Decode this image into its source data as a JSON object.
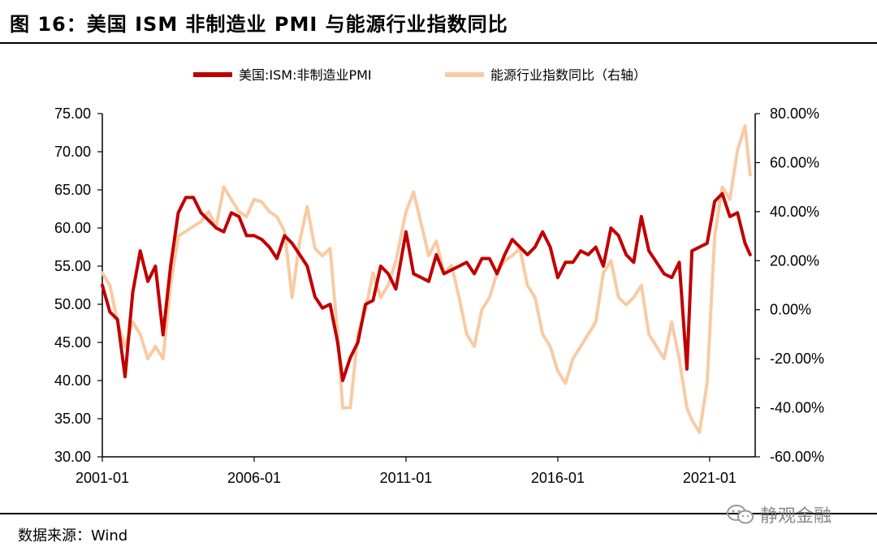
{
  "title": "图 16：美国 ISM 非制造业 PMI 与能源行业指数同比",
  "source": "数据来源：Wind",
  "watermark": "静观金融",
  "chart_data": {
    "type": "line",
    "x_ticks": [
      "2001-01",
      "2006-01",
      "2011-01",
      "2016-01",
      "2021-01"
    ],
    "y_left": {
      "lim": [
        30,
        75
      ],
      "ticks": [
        "75.00",
        "70.00",
        "65.00",
        "60.00",
        "55.00",
        "50.00",
        "45.00",
        "40.00",
        "35.00",
        "30.00"
      ]
    },
    "y_right": {
      "lim": [
        -60,
        80
      ],
      "ticks": [
        "80.00%",
        "60.00%",
        "40.00%",
        "20.00%",
        "0.00%",
        "-20.00%",
        "-40.00%",
        "-60.00%"
      ]
    },
    "series": [
      {
        "name": "美国:ISM:非制造业PMI",
        "axis": "left",
        "color": "#c00000",
        "x": [
          "2001-01",
          "2001-04",
          "2001-07",
          "2001-10",
          "2002-01",
          "2002-04",
          "2002-07",
          "2002-10",
          "2003-01",
          "2003-04",
          "2003-07",
          "2003-10",
          "2004-01",
          "2004-04",
          "2004-07",
          "2004-10",
          "2005-01",
          "2005-04",
          "2005-07",
          "2005-10",
          "2006-01",
          "2006-04",
          "2006-07",
          "2006-10",
          "2007-01",
          "2007-04",
          "2007-07",
          "2007-10",
          "2008-01",
          "2008-04",
          "2008-07",
          "2008-10",
          "2008-12",
          "2009-03",
          "2009-06",
          "2009-09",
          "2009-12",
          "2010-03",
          "2010-06",
          "2010-09",
          "2011-01",
          "2011-04",
          "2011-07",
          "2011-10",
          "2012-01",
          "2012-04",
          "2012-07",
          "2012-10",
          "2013-01",
          "2013-04",
          "2013-07",
          "2013-10",
          "2014-01",
          "2014-04",
          "2014-07",
          "2014-10",
          "2015-01",
          "2015-04",
          "2015-07",
          "2015-10",
          "2016-01",
          "2016-04",
          "2016-07",
          "2016-10",
          "2017-01",
          "2017-04",
          "2017-07",
          "2017-10",
          "2018-01",
          "2018-04",
          "2018-07",
          "2018-10",
          "2019-01",
          "2019-04",
          "2019-07",
          "2019-10",
          "2020-01",
          "2020-04",
          "2020-06",
          "2020-09",
          "2020-12",
          "2021-03",
          "2021-06",
          "2021-09",
          "2021-12",
          "2022-03",
          "2022-05"
        ],
        "values": [
          52.5,
          49.0,
          48.0,
          40.5,
          51.5,
          57.0,
          53.0,
          55.0,
          46.0,
          55.0,
          62.0,
          64.0,
          64.0,
          62.0,
          61.0,
          60.0,
          59.5,
          62.0,
          61.5,
          59.0,
          59.0,
          58.5,
          57.5,
          56.0,
          59.0,
          58.0,
          56.5,
          55.0,
          51.0,
          49.5,
          50.0,
          45.0,
          40.0,
          43.0,
          45.0,
          50.0,
          50.5,
          55.0,
          54.0,
          52.0,
          59.5,
          54.0,
          53.5,
          53.0,
          56.5,
          54.0,
          54.5,
          55.0,
          55.5,
          54.0,
          56.0,
          56.0,
          54.0,
          56.5,
          58.5,
          57.5,
          56.5,
          57.5,
          59.5,
          57.5,
          53.5,
          55.5,
          55.5,
          57.0,
          56.5,
          57.5,
          55.0,
          60.0,
          59.0,
          56.5,
          55.5,
          61.5,
          57.0,
          55.5,
          54.0,
          53.5,
          55.5,
          41.5,
          57.0,
          57.5,
          58.0,
          63.5,
          64.5,
          61.5,
          62.0,
          58.0,
          56.5
        ]
      },
      {
        "name": "能源行业指数同比（右轴）",
        "axis": "right",
        "color": "#f8cba4",
        "x": [
          "2001-01",
          "2001-04",
          "2001-07",
          "2001-10",
          "2002-01",
          "2002-04",
          "2002-07",
          "2002-10",
          "2003-01",
          "2003-04",
          "2003-07",
          "2003-10",
          "2004-01",
          "2004-04",
          "2004-07",
          "2004-10",
          "2005-01",
          "2005-04",
          "2005-07",
          "2005-10",
          "2006-01",
          "2006-04",
          "2006-07",
          "2006-10",
          "2007-01",
          "2007-04",
          "2007-07",
          "2007-10",
          "2008-01",
          "2008-04",
          "2008-07",
          "2008-10",
          "2008-12",
          "2009-03",
          "2009-06",
          "2009-09",
          "2009-12",
          "2010-03",
          "2010-06",
          "2010-09",
          "2011-01",
          "2011-04",
          "2011-07",
          "2011-10",
          "2012-01",
          "2012-04",
          "2012-07",
          "2012-10",
          "2013-01",
          "2013-04",
          "2013-07",
          "2013-10",
          "2014-01",
          "2014-04",
          "2014-07",
          "2014-10",
          "2015-01",
          "2015-04",
          "2015-07",
          "2015-10",
          "2016-01",
          "2016-04",
          "2016-07",
          "2016-10",
          "2017-01",
          "2017-04",
          "2017-07",
          "2017-10",
          "2018-01",
          "2018-04",
          "2018-07",
          "2018-10",
          "2019-01",
          "2019-04",
          "2019-07",
          "2019-10",
          "2020-01",
          "2020-04",
          "2020-06",
          "2020-09",
          "2020-12",
          "2021-03",
          "2021-06",
          "2021-09",
          "2021-12",
          "2022-03",
          "2022-05"
        ],
        "values": [
          15,
          10,
          -5,
          -15,
          -5,
          -10,
          -20,
          -15,
          -20,
          10,
          30,
          32,
          34,
          36,
          40,
          34,
          50,
          45,
          40,
          38,
          45,
          44,
          40,
          38,
          32,
          5,
          28,
          42,
          25,
          22,
          25,
          -10,
          -40,
          -40,
          -10,
          0,
          15,
          5,
          10,
          20,
          40,
          48,
          35,
          22,
          28,
          15,
          18,
          5,
          -10,
          -15,
          0,
          5,
          15,
          20,
          22,
          25,
          10,
          5,
          -10,
          -15,
          -25,
          -30,
          -20,
          -15,
          -10,
          -5,
          15,
          20,
          5,
          2,
          5,
          10,
          -10,
          -15,
          -20,
          -5,
          -20,
          -40,
          -45,
          -50,
          -30,
          30,
          50,
          45,
          65,
          75,
          55
        ]
      }
    ]
  }
}
